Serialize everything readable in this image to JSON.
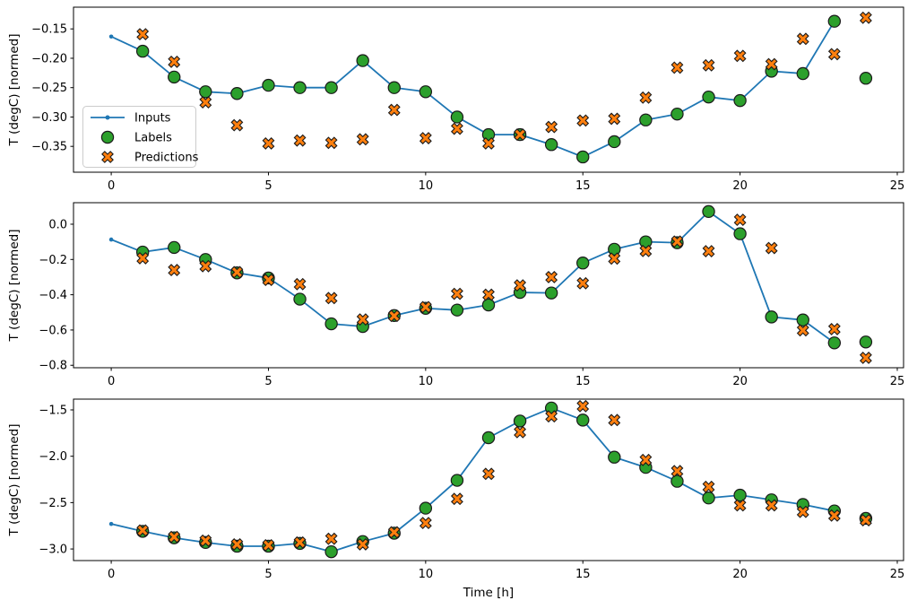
{
  "figure": {
    "xlabel": "Time [h]",
    "ylabel": "T (degC) [normed]",
    "background_color": "#ffffff",
    "spine_color": "#000000",
    "legend": {
      "visible_on_subplot": 1,
      "items": [
        {
          "label": "Inputs",
          "marker": "line-dot",
          "color": "#1f77b4"
        },
        {
          "label": "Labels",
          "marker": "circle",
          "color": "#2ca02c"
        },
        {
          "label": "Predictions",
          "marker": "X",
          "color": "#ff7f0e"
        }
      ]
    }
  },
  "chart_data": [
    {
      "type": "line",
      "title": "",
      "xlabel": "",
      "ylabel": "T (degC) [normed]",
      "xlim": [
        -1.2,
        25.2
      ],
      "ylim": [
        -0.394,
        -0.113
      ],
      "xticks": [
        0,
        5,
        10,
        15,
        20,
        25
      ],
      "yticks": [
        -0.15,
        -0.2,
        -0.25,
        -0.3,
        -0.35
      ],
      "ytick_labels": [
        "−0.15",
        "−0.20",
        "−0.25",
        "−0.30",
        "−0.35"
      ],
      "grid": false,
      "legend": true,
      "legend_position": "center left",
      "series": [
        {
          "name": "Inputs",
          "kind": "line",
          "marker": "dot",
          "color": "#1f77b4",
          "x": [
            0,
            1,
            2,
            3,
            4,
            5,
            6,
            7,
            8,
            9,
            10,
            11,
            12,
            13,
            14,
            15,
            16,
            17,
            18,
            19,
            20,
            21,
            22,
            23
          ],
          "y": [
            -0.163,
            -0.188,
            -0.232,
            -0.257,
            -0.26,
            -0.246,
            -0.25,
            -0.25,
            -0.204,
            -0.25,
            -0.257,
            -0.3,
            -0.33,
            -0.33,
            -0.347,
            -0.368,
            -0.342,
            -0.305,
            -0.295,
            -0.266,
            -0.272,
            -0.222,
            -0.226,
            -0.137
          ]
        },
        {
          "name": "Labels",
          "kind": "scatter",
          "marker": "circle",
          "color": "#2ca02c",
          "x": [
            1,
            2,
            3,
            4,
            5,
            6,
            7,
            8,
            9,
            10,
            11,
            12,
            13,
            14,
            15,
            16,
            17,
            18,
            19,
            20,
            21,
            22,
            23,
            24
          ],
          "y": [
            -0.188,
            -0.232,
            -0.257,
            -0.26,
            -0.246,
            -0.25,
            -0.25,
            -0.204,
            -0.25,
            -0.257,
            -0.3,
            -0.33,
            -0.33,
            -0.347,
            -0.368,
            -0.342,
            -0.305,
            -0.295,
            -0.266,
            -0.272,
            -0.222,
            -0.226,
            -0.137,
            -0.234
          ]
        },
        {
          "name": "Predictions",
          "kind": "scatter",
          "marker": "X",
          "color": "#ff7f0e",
          "x": [
            1,
            2,
            3,
            4,
            5,
            6,
            7,
            8,
            9,
            10,
            11,
            12,
            13,
            14,
            15,
            16,
            17,
            18,
            19,
            20,
            21,
            22,
            23,
            24
          ],
          "y": [
            -0.159,
            -0.206,
            -0.275,
            -0.314,
            -0.345,
            -0.34,
            -0.344,
            -0.338,
            -0.288,
            -0.336,
            -0.32,
            -0.345,
            -0.33,
            -0.317,
            -0.306,
            -0.303,
            -0.267,
            -0.216,
            -0.212,
            -0.196,
            -0.21,
            -0.167,
            -0.193,
            -0.131
          ]
        }
      ]
    },
    {
      "type": "line",
      "title": "",
      "xlabel": "",
      "ylabel": "T (degC) [normed]",
      "xlim": [
        -1.2,
        25.2
      ],
      "ylim": [
        -0.814,
        0.122
      ],
      "xticks": [
        0,
        5,
        10,
        15,
        20,
        25
      ],
      "yticks": [
        0.0,
        -0.2,
        -0.4,
        -0.6,
        -0.8
      ],
      "ytick_labels": [
        "0.0",
        "−0.2",
        "−0.4",
        "−0.6",
        "−0.8"
      ],
      "grid": false,
      "legend": false,
      "series": [
        {
          "name": "Inputs",
          "kind": "line",
          "marker": "dot",
          "color": "#1f77b4",
          "x": [
            0,
            1,
            2,
            3,
            4,
            5,
            6,
            7,
            8,
            9,
            10,
            11,
            12,
            13,
            14,
            15,
            16,
            17,
            18,
            19,
            20,
            21,
            22,
            23
          ],
          "y": [
            -0.087,
            -0.158,
            -0.132,
            -0.2,
            -0.276,
            -0.305,
            -0.425,
            -0.565,
            -0.58,
            -0.518,
            -0.477,
            -0.487,
            -0.458,
            -0.387,
            -0.39,
            -0.22,
            -0.142,
            -0.1,
            -0.105,
            0.072,
            -0.054,
            -0.526,
            -0.543,
            -0.673
          ]
        },
        {
          "name": "Labels",
          "kind": "scatter",
          "marker": "circle",
          "color": "#2ca02c",
          "x": [
            1,
            2,
            3,
            4,
            5,
            6,
            7,
            8,
            9,
            10,
            11,
            12,
            13,
            14,
            15,
            16,
            17,
            18,
            19,
            20,
            21,
            22,
            23,
            24
          ],
          "y": [
            -0.158,
            -0.132,
            -0.2,
            -0.276,
            -0.305,
            -0.425,
            -0.565,
            -0.58,
            -0.518,
            -0.477,
            -0.487,
            -0.458,
            -0.387,
            -0.39,
            -0.22,
            -0.142,
            -0.1,
            -0.105,
            0.072,
            -0.054,
            -0.526,
            -0.543,
            -0.673,
            -0.668
          ]
        },
        {
          "name": "Predictions",
          "kind": "scatter",
          "marker": "X",
          "color": "#ff7f0e",
          "x": [
            1,
            2,
            3,
            4,
            5,
            6,
            7,
            8,
            9,
            10,
            11,
            12,
            13,
            14,
            15,
            16,
            17,
            18,
            19,
            20,
            21,
            22,
            23,
            24
          ],
          "y": [
            -0.193,
            -0.26,
            -0.238,
            -0.272,
            -0.316,
            -0.34,
            -0.419,
            -0.54,
            -0.52,
            -0.47,
            -0.395,
            -0.4,
            -0.347,
            -0.3,
            -0.335,
            -0.195,
            -0.152,
            -0.098,
            -0.153,
            0.025,
            -0.135,
            -0.602,
            -0.595,
            -0.758
          ]
        }
      ]
    },
    {
      "type": "line",
      "title": "",
      "xlabel": "Time [h]",
      "ylabel": "T (degC) [normed]",
      "xlim": [
        -1.2,
        25.2
      ],
      "ylim": [
        -3.125,
        -1.384
      ],
      "xticks": [
        0,
        5,
        10,
        15,
        20,
        25
      ],
      "yticks": [
        -1.5,
        -2.0,
        -2.5,
        -3.0
      ],
      "ytick_labels": [
        "−1.5",
        "−2.0",
        "−2.5",
        "−3.0"
      ],
      "grid": false,
      "legend": false,
      "series": [
        {
          "name": "Inputs",
          "kind": "line",
          "marker": "dot",
          "color": "#1f77b4",
          "x": [
            0,
            1,
            2,
            3,
            4,
            5,
            6,
            7,
            8,
            9,
            10,
            11,
            12,
            13,
            14,
            15,
            16,
            17,
            18,
            19,
            20,
            21,
            22,
            23
          ],
          "y": [
            -2.73,
            -2.81,
            -2.88,
            -2.93,
            -2.97,
            -2.97,
            -2.94,
            -3.03,
            -2.92,
            -2.83,
            -2.56,
            -2.26,
            -1.8,
            -1.62,
            -1.48,
            -1.61,
            -2.01,
            -2.12,
            -2.27,
            -2.45,
            -2.42,
            -2.47,
            -2.52,
            -2.59
          ]
        },
        {
          "name": "Labels",
          "kind": "scatter",
          "marker": "circle",
          "color": "#2ca02c",
          "x": [
            1,
            2,
            3,
            4,
            5,
            6,
            7,
            8,
            9,
            10,
            11,
            12,
            13,
            14,
            15,
            16,
            17,
            18,
            19,
            20,
            21,
            22,
            23,
            24
          ],
          "y": [
            -2.81,
            -2.88,
            -2.93,
            -2.97,
            -2.97,
            -2.94,
            -3.03,
            -2.92,
            -2.83,
            -2.56,
            -2.26,
            -1.8,
            -1.62,
            -1.48,
            -1.61,
            -2.01,
            -2.12,
            -2.27,
            -2.45,
            -2.42,
            -2.47,
            -2.52,
            -2.59,
            -2.67
          ]
        },
        {
          "name": "Predictions",
          "kind": "scatter",
          "marker": "X",
          "color": "#ff7f0e",
          "x": [
            1,
            2,
            3,
            4,
            5,
            6,
            7,
            8,
            9,
            10,
            11,
            12,
            13,
            14,
            15,
            16,
            17,
            18,
            19,
            20,
            21,
            22,
            23,
            24
          ],
          "y": [
            -2.8,
            -2.87,
            -2.91,
            -2.95,
            -2.96,
            -2.93,
            -2.89,
            -2.95,
            -2.82,
            -2.72,
            -2.46,
            -2.19,
            -1.74,
            -1.57,
            -1.46,
            -1.61,
            -2.04,
            -2.16,
            -2.33,
            -2.53,
            -2.53,
            -2.6,
            -2.64,
            -2.69
          ]
        }
      ]
    }
  ]
}
